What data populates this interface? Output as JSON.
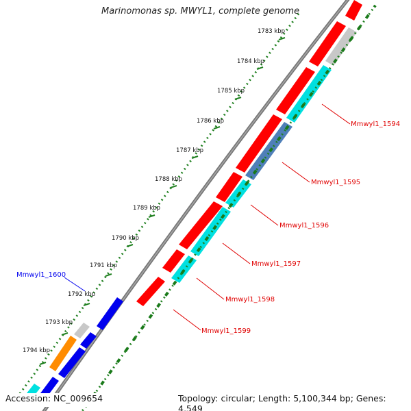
{
  "title": "Marinomonas sp. MWYL1, complete genome",
  "footer": {
    "accession": "Accession: NC_009654",
    "stats": "Topology: circular; Length: 5,100,344 bp; Genes: 4,549"
  },
  "ticks": [
    "1783 kbp",
    "1784 kbp",
    "1785 kbp",
    "1786 kbp",
    "1787 kbp",
    "1788 kbp",
    "1789 kbp",
    "1790 kbp",
    "1791 kbp",
    "1792 kbp",
    "1793 kbp",
    "1794 kbp"
  ],
  "genes": [
    {
      "name": "Mmwyl1_1594"
    },
    {
      "name": "Mmwyl1_1595"
    },
    {
      "name": "Mmwyl1_1596"
    },
    {
      "name": "Mmwyl1_1597"
    },
    {
      "name": "Mmwyl1_1598"
    },
    {
      "name": "Mmwyl1_1599"
    },
    {
      "name": "Mmwyl1_1600"
    }
  ],
  "colors": {
    "cds_red": "#ff0000",
    "match_cyan": "#00e0e0",
    "match_steel": "#4f7fb8",
    "cds_blue": "#0000ee",
    "cds_orange": "#ff8c00",
    "cds_gray": "#c8c8c8",
    "label_red": "#e00000",
    "label_blue": "#0000ee",
    "dots": "#208020",
    "backbone": "#777777"
  }
}
